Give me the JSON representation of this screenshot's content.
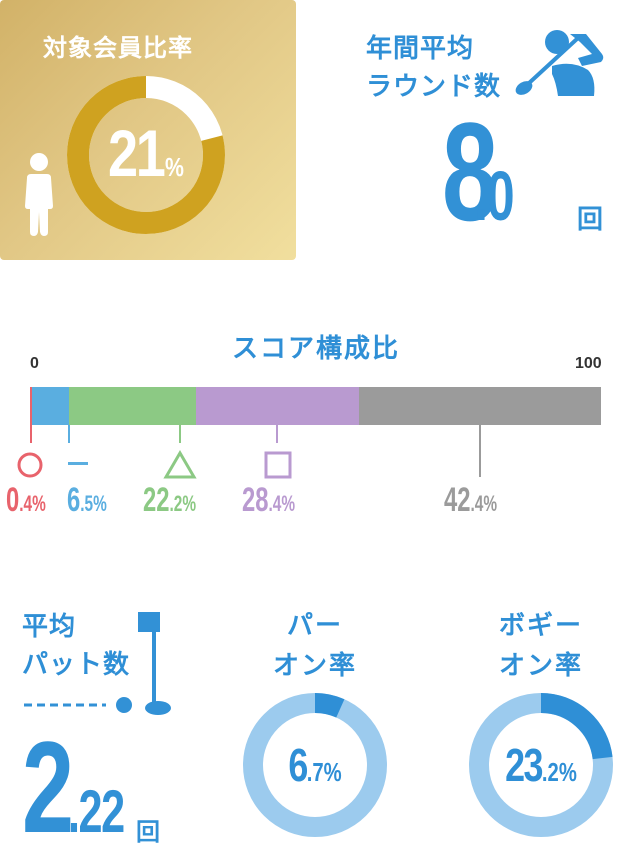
{
  "member_ratio": {
    "title": "対象会員比率",
    "value": "21",
    "unit": "%",
    "percent": 21,
    "colors": {
      "ring": "#d0a21e",
      "ring_bg": "#ffffff",
      "ring_inner": "#bf9018"
    }
  },
  "annual_rounds": {
    "title_line1": "年間平均",
    "title_line2": "ラウンド数",
    "value_int": "8",
    "value_dec": ".0",
    "unit": "回"
  },
  "score_composition": {
    "title": "スコア構成比",
    "axis_min": "0",
    "axis_max": "100",
    "segments": [
      {
        "symbol": "circle-symbol",
        "value_int": "0",
        "value_dec": ".4%",
        "percent": 0.4,
        "color": "#e8636c"
      },
      {
        "symbol": "dash-symbol",
        "value_int": "6",
        "value_dec": ".5%",
        "percent": 6.5,
        "color": "#5aaee0"
      },
      {
        "symbol": "triangle-symbol",
        "value_int": "22",
        "value_dec": ".2%",
        "percent": 22.2,
        "color": "#8cc984"
      },
      {
        "symbol": "square-symbol",
        "value_int": "28",
        "value_dec": ".4%",
        "percent": 28.4,
        "color": "#b99ad0"
      },
      {
        "symbol": "",
        "value_int": "42",
        "value_dec": ".4%",
        "percent": 42.4,
        "color": "#9b9b9b"
      }
    ]
  },
  "average_putts": {
    "title_line1": "平均",
    "title_line2": "パット数",
    "value_int": "2",
    "value_dec": ".22",
    "unit": "回"
  },
  "par_on_rate": {
    "title_line1": "パー",
    "title_line2": "オン率",
    "value_int": "6",
    "value_dec": ".7%",
    "percent": 6.7
  },
  "bogey_on_rate": {
    "title_line1": "ボギー",
    "title_line2": "オン率",
    "value_int": "23",
    "value_dec": ".2%",
    "percent": 23.2
  },
  "colors": {
    "accent_blue": "#3291d6",
    "ring_light": "#9ccbee",
    "ring_dark": "#2f8fd6"
  }
}
